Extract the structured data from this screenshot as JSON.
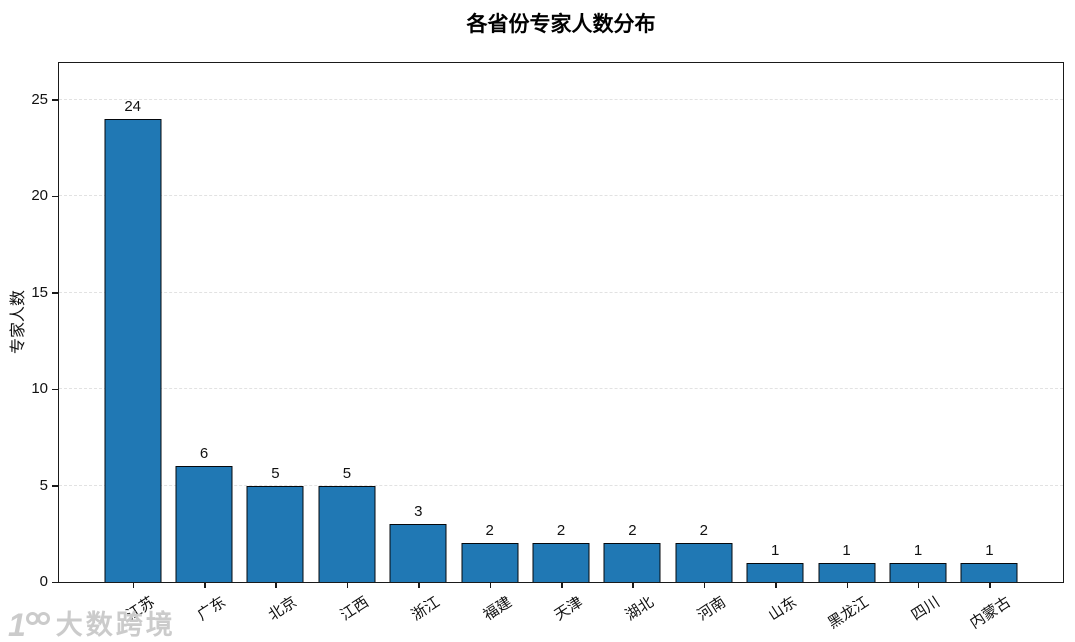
{
  "chart_data": {
    "type": "bar",
    "title": "各省份专家人数分布",
    "xlabel": "",
    "ylabel": "专家人数",
    "categories": [
      "江苏",
      "广东",
      "北京",
      "江西",
      "浙江",
      "福建",
      "天津",
      "湖北",
      "河南",
      "山东",
      "黑龙江",
      "四川",
      "内蒙古"
    ],
    "values": [
      24,
      6,
      5,
      5,
      3,
      2,
      2,
      2,
      2,
      1,
      1,
      1,
      1
    ],
    "yticks": [
      0,
      5,
      10,
      15,
      20,
      25
    ],
    "ylim": [
      0,
      26.9
    ],
    "grid": "horizontal-dashed",
    "legend": "none",
    "value_labels": true,
    "bar_color": "#2078b4",
    "bar_edge_color": "#05080c",
    "grid_color": "#e2e2e2"
  },
  "watermark": {
    "logo": "one-double-ring-logo",
    "text": "大数跨境"
  }
}
